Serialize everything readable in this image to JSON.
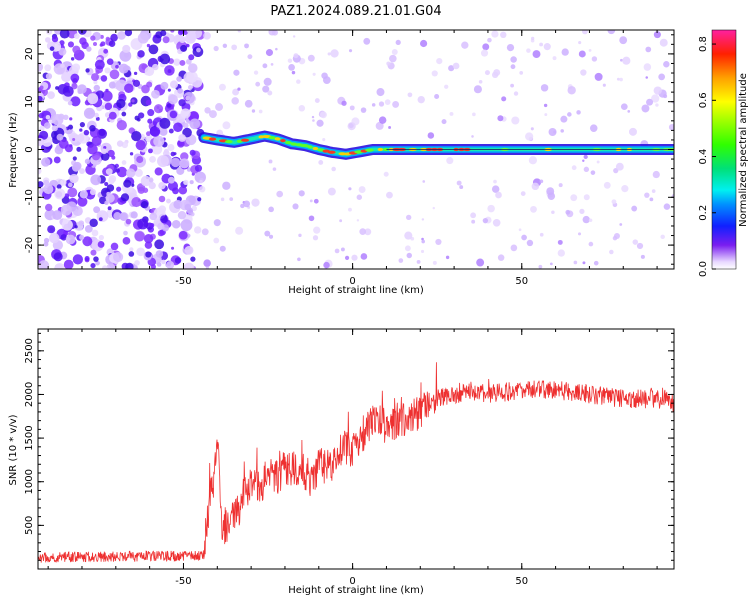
{
  "title": "PAZ1.2024.089.21.01.G04",
  "colors": {
    "snr_line": "#ee3030",
    "ridge": "#1e6fd8",
    "noise_purple": "#5a1aff"
  },
  "chart_data": [
    {
      "type": "heatmap",
      "xlabel": "Height of straight line (km)",
      "ylabel": "Frequency (Hz)",
      "xlim": [
        -93,
        95
      ],
      "ylim": [
        -25,
        25
      ],
      "xticks": [
        -50,
        0,
        50
      ],
      "yticks": [
        -20,
        -10,
        0,
        10,
        20
      ],
      "colorbar": {
        "label": "Normalized spectral amplitude",
        "range": [
          0,
          0.85
        ],
        "ticks": [
          0.0,
          0.2,
          0.4,
          0.6,
          0.8
        ],
        "colormap": "gist_ncar (purple-blue-cyan-green-yellow-orange-red-magenta)"
      },
      "ridge": {
        "description": "dominant frequency track",
        "x": [
          -44,
          -40,
          -35,
          -30,
          -26,
          -22,
          -18,
          -14,
          -10,
          -6,
          -2,
          2,
          6,
          10,
          20,
          40,
          60,
          80,
          95
        ],
        "y": [
          2.5,
          2.0,
          1.5,
          2.2,
          2.8,
          2.2,
          1.2,
          0.8,
          0.0,
          -0.6,
          -1.0,
          -0.5,
          0.0,
          0.0,
          0.0,
          0.0,
          0.0,
          0.0,
          0.0
        ]
      }
    },
    {
      "type": "line",
      "xlabel": "Height of straight line (km)",
      "ylabel": "SNR (10 * v/v)",
      "xlim": [
        -93,
        95
      ],
      "ylim": [
        0,
        2750
      ],
      "xticks": [
        -50,
        0,
        50
      ],
      "yticks": [
        500,
        1000,
        1500,
        2000,
        2500
      ],
      "series": [
        {
          "x": [
            -93,
            -80,
            -60,
            -50,
            -44,
            -42,
            -41,
            -40,
            -39,
            -38,
            -37,
            -35,
            -33,
            -30,
            -27,
            -25,
            -22,
            -20,
            -17,
            -15,
            -12,
            -10,
            -7,
            -5,
            -3,
            0,
            3,
            5,
            8,
            10,
            12,
            15,
            18,
            20,
            22,
            25,
            30,
            35,
            40,
            50,
            60,
            70,
            80,
            90,
            95
          ],
          "y": [
            130,
            140,
            145,
            150,
            160,
            900,
            1000,
            1600,
            600,
            450,
            350,
            650,
            700,
            1000,
            950,
            1100,
            1050,
            1150,
            1150,
            1150,
            1000,
            1200,
            1150,
            1250,
            1400,
            1350,
            1500,
            1650,
            1750,
            1600,
            1650,
            1700,
            1750,
            1800,
            1900,
            1950,
            2000,
            2050,
            2000,
            2050,
            2050,
            2000,
            1950,
            1950,
            1900
          ]
        }
      ]
    }
  ]
}
